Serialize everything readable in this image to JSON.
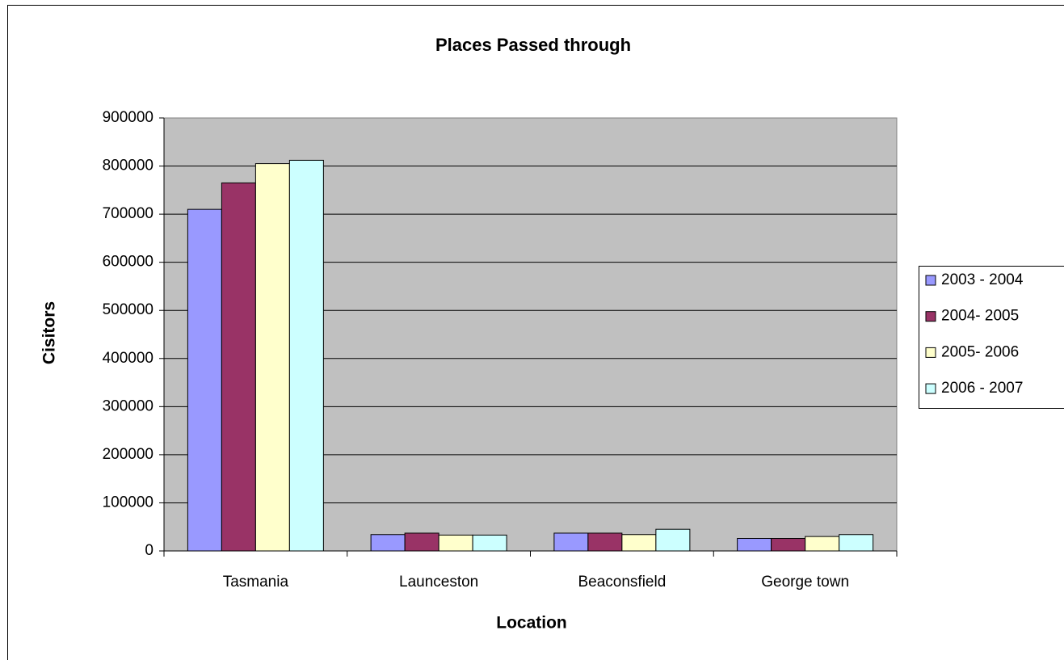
{
  "chart_data": {
    "type": "bar",
    "title": "Places Passed through",
    "x_label": "Location",
    "y_label": "Cisitors",
    "categories": [
      "Tasmania",
      "Launceston",
      "Beaconsfield",
      "George town"
    ],
    "series": [
      {
        "name": "2003 - 2004",
        "color": "#9999ff",
        "values": [
          710000,
          34000,
          37000,
          26000
        ]
      },
      {
        "name": "2004- 2005",
        "color": "#993366",
        "values": [
          765000,
          37000,
          37000,
          26000
        ]
      },
      {
        "name": "2005- 2006",
        "color": "#ffffcc",
        "values": [
          805000,
          33000,
          34000,
          30000
        ]
      },
      {
        "name": "2006 - 2007",
        "color": "#ccffff",
        "values": [
          812000,
          33000,
          45000,
          34000
        ]
      }
    ],
    "ylim": [
      0,
      900000
    ],
    "yticks": [
      0,
      100000,
      200000,
      300000,
      400000,
      500000,
      600000,
      700000,
      800000,
      900000
    ],
    "grid": true,
    "legend": "right",
    "plot_background": "#c0c0c0"
  }
}
